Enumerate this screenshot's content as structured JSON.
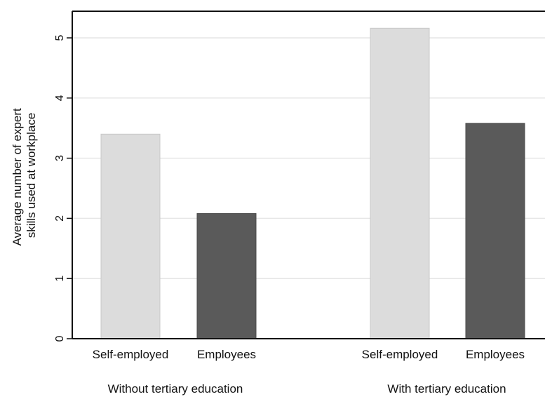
{
  "chart_data": {
    "type": "bar",
    "title": "",
    "xlabel": "",
    "ylabel": "Average number of expert skills used at workplace",
    "ylabel_lines": [
      "Average number of expert",
      "skills used at workplace"
    ],
    "ylim": [
      0,
      5.4
    ],
    "yticks": [
      "0",
      "1",
      "2",
      "3",
      "4",
      "5"
    ],
    "grid": true,
    "legend": "none",
    "groups": [
      {
        "label": "Without tertiary education",
        "categories": [
          "Self-employed",
          "Employees"
        ],
        "values": [
          3.4,
          2.08
        ]
      },
      {
        "label": "With tertiary education",
        "categories": [
          "Self-employed",
          "Employees"
        ],
        "values": [
          5.16,
          3.58
        ]
      }
    ],
    "colors": {
      "Self-employed": "#dcdcdc",
      "Employees": "#5a5a5a",
      "grid": "#e6e6e6",
      "axis": "#111111"
    }
  }
}
